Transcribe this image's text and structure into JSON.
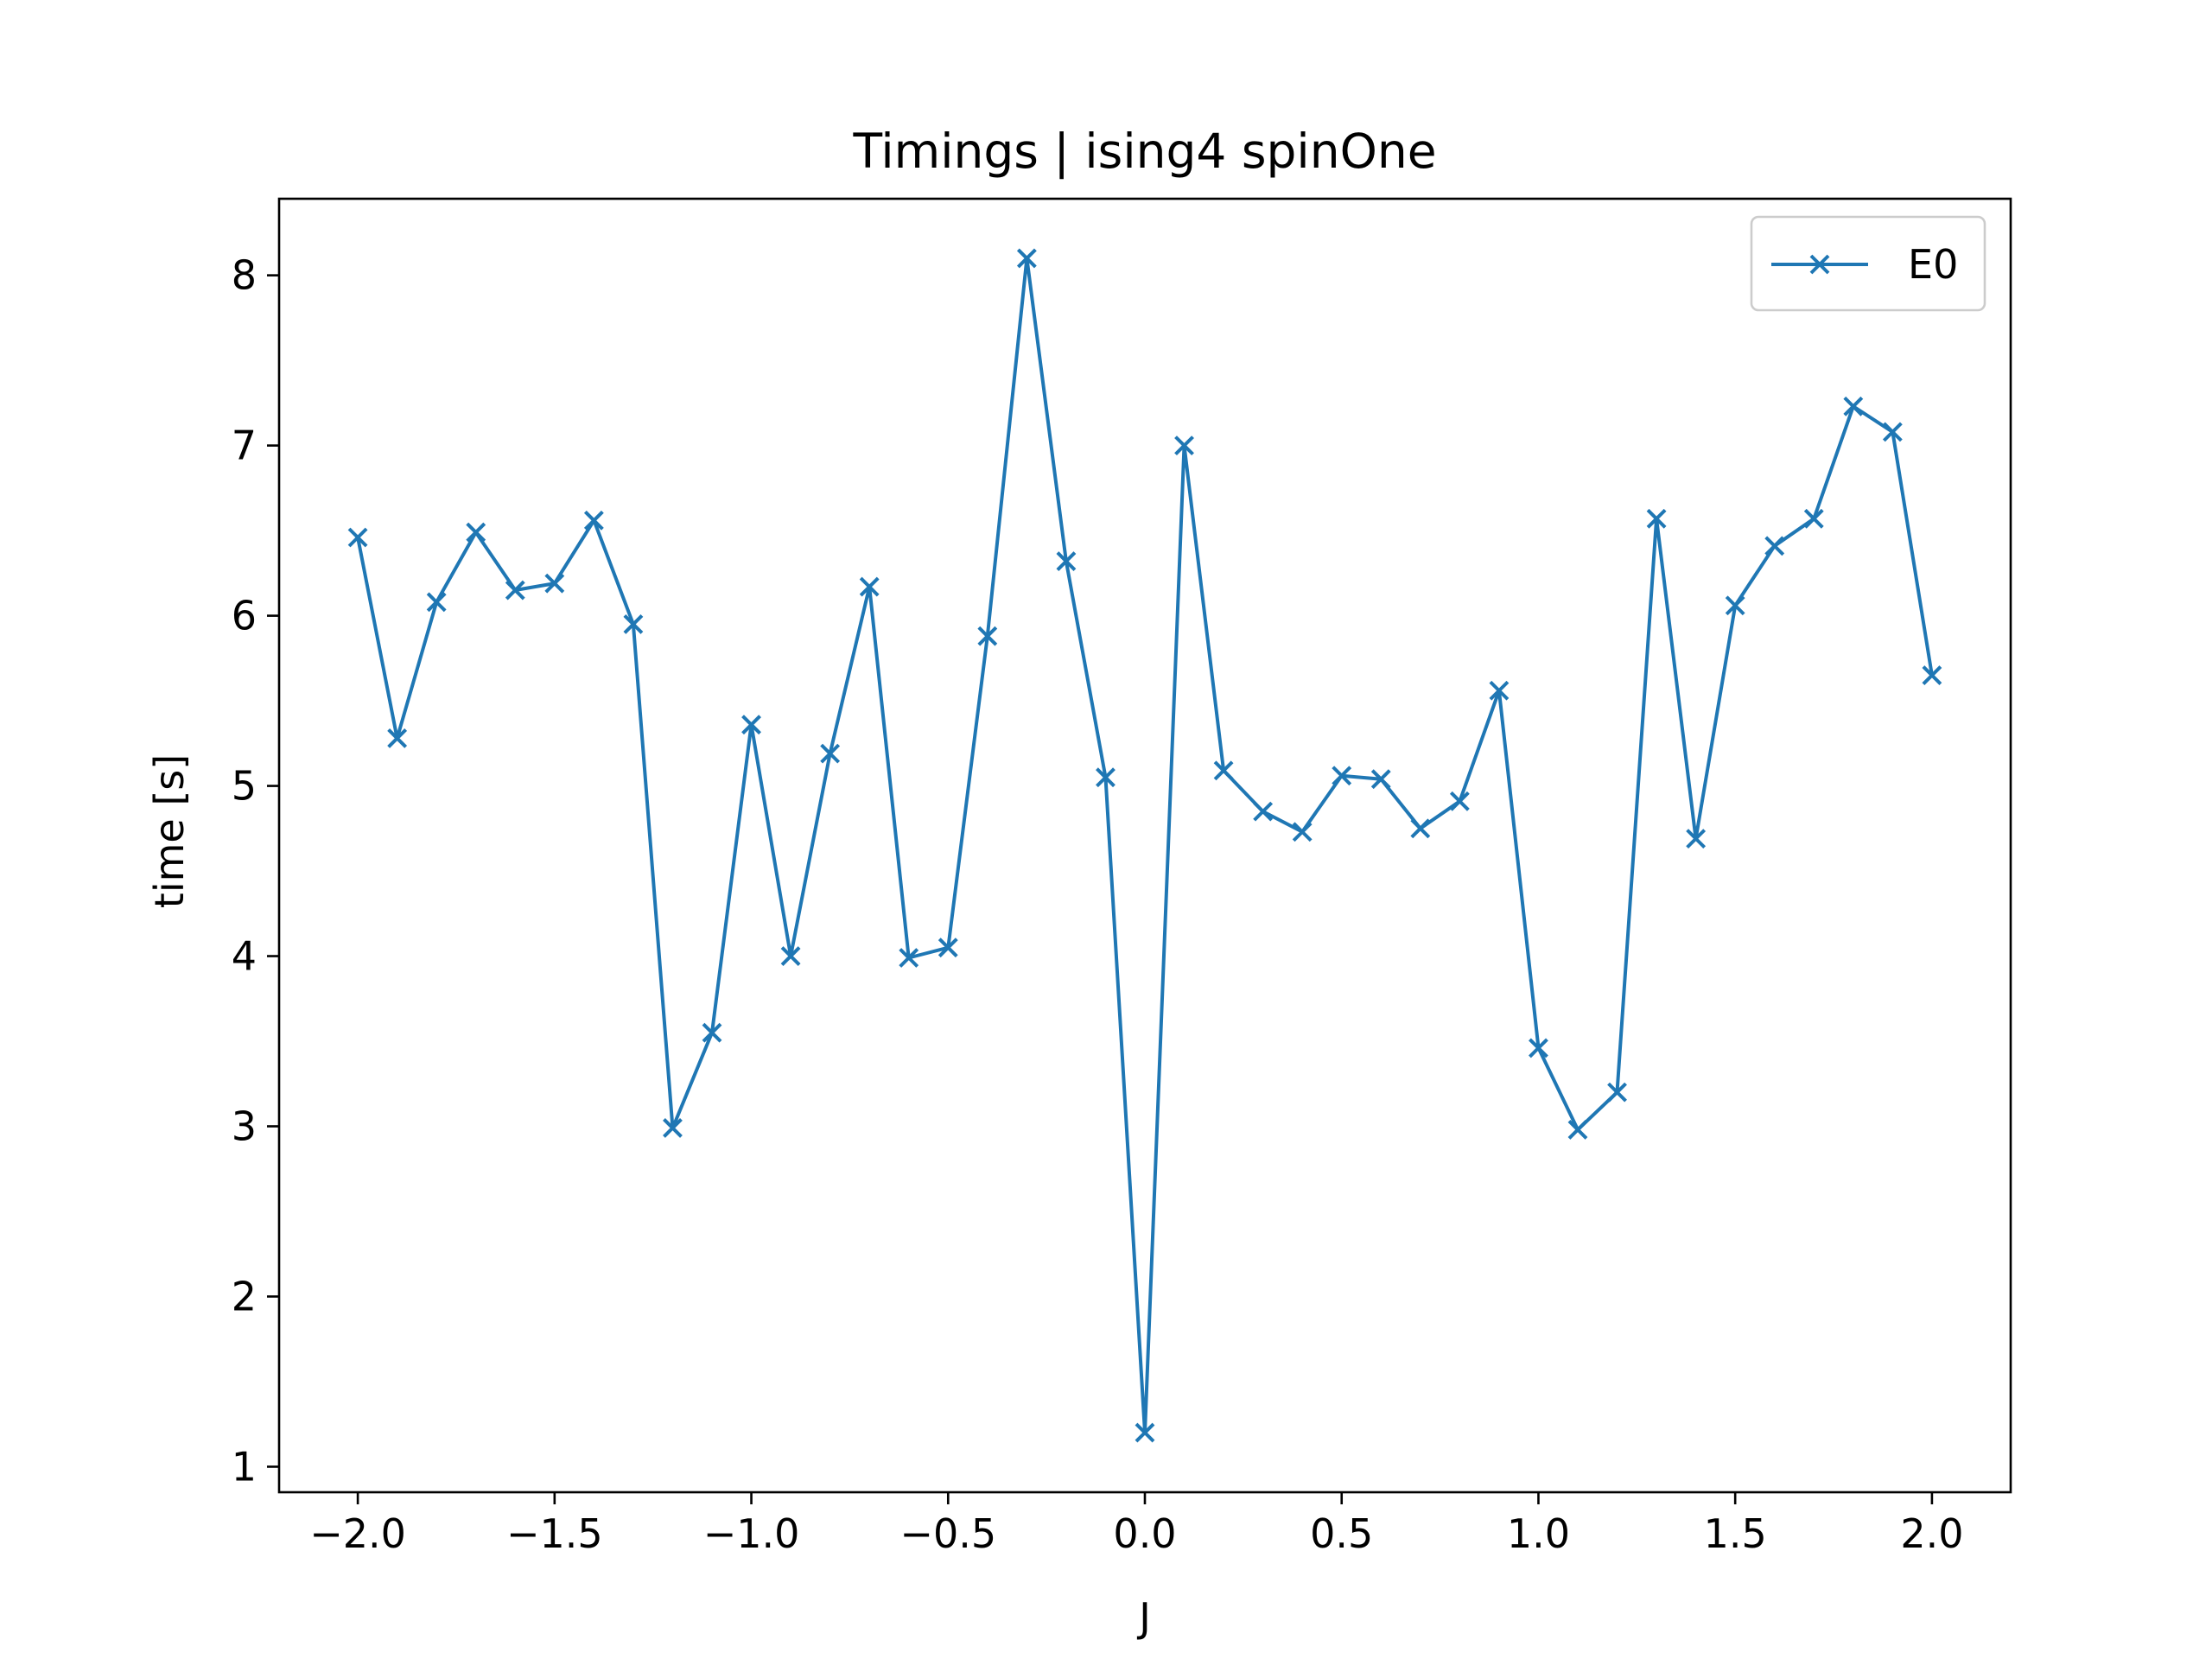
{
  "chart_data": {
    "type": "line",
    "title": "Timings | ising4 spinOne",
    "xlabel": "J",
    "ylabel": "time [s]",
    "xlim": [
      -2.2,
      2.2
    ],
    "ylim": [
      0.85,
      8.45
    ],
    "xticks": [
      -2.0,
      -1.5,
      -1.0,
      -0.5,
      0.0,
      0.5,
      1.0,
      1.5,
      2.0
    ],
    "xtick_labels": [
      "−2.0",
      "−1.5",
      "−1.0",
      "−0.5",
      "0.0",
      "0.5",
      "1.0",
      "1.5",
      "2.0"
    ],
    "yticks": [
      1,
      2,
      3,
      4,
      5,
      6,
      7,
      8
    ],
    "ytick_labels": [
      "1",
      "2",
      "3",
      "4",
      "5",
      "6",
      "7",
      "8"
    ],
    "grid": false,
    "legend_position": "upper right",
    "series": [
      {
        "name": "E0",
        "color": "#1f77b4",
        "marker": "x",
        "x": [
          -2.0,
          -1.9,
          -1.8,
          -1.7,
          -1.6,
          -1.5,
          -1.4,
          -1.3,
          -1.2,
          -1.1,
          -1.0,
          -0.9,
          -0.8,
          -0.7,
          -0.6,
          -0.5,
          -0.4,
          -0.3,
          -0.2,
          -0.1,
          0.0,
          0.1,
          0.2,
          0.3,
          0.4,
          0.5,
          0.6,
          0.7,
          0.8,
          0.9,
          1.0,
          1.1,
          1.2,
          1.3,
          1.4,
          1.5,
          1.6,
          1.7,
          1.8,
          1.9,
          2.0
        ],
        "y": [
          6.46,
          5.28,
          6.08,
          6.49,
          6.15,
          6.19,
          6.56,
          5.95,
          2.99,
          3.55,
          5.36,
          4.0,
          5.19,
          6.17,
          3.99,
          4.05,
          5.88,
          8.1,
          6.32,
          5.05,
          1.2,
          7.0,
          5.09,
          4.85,
          4.73,
          5.06,
          5.04,
          4.75,
          4.91,
          5.56,
          3.46,
          2.98,
          3.2,
          6.57,
          4.69,
          6.06,
          6.41,
          6.57,
          7.23,
          7.08,
          5.65
        ]
      }
    ]
  }
}
